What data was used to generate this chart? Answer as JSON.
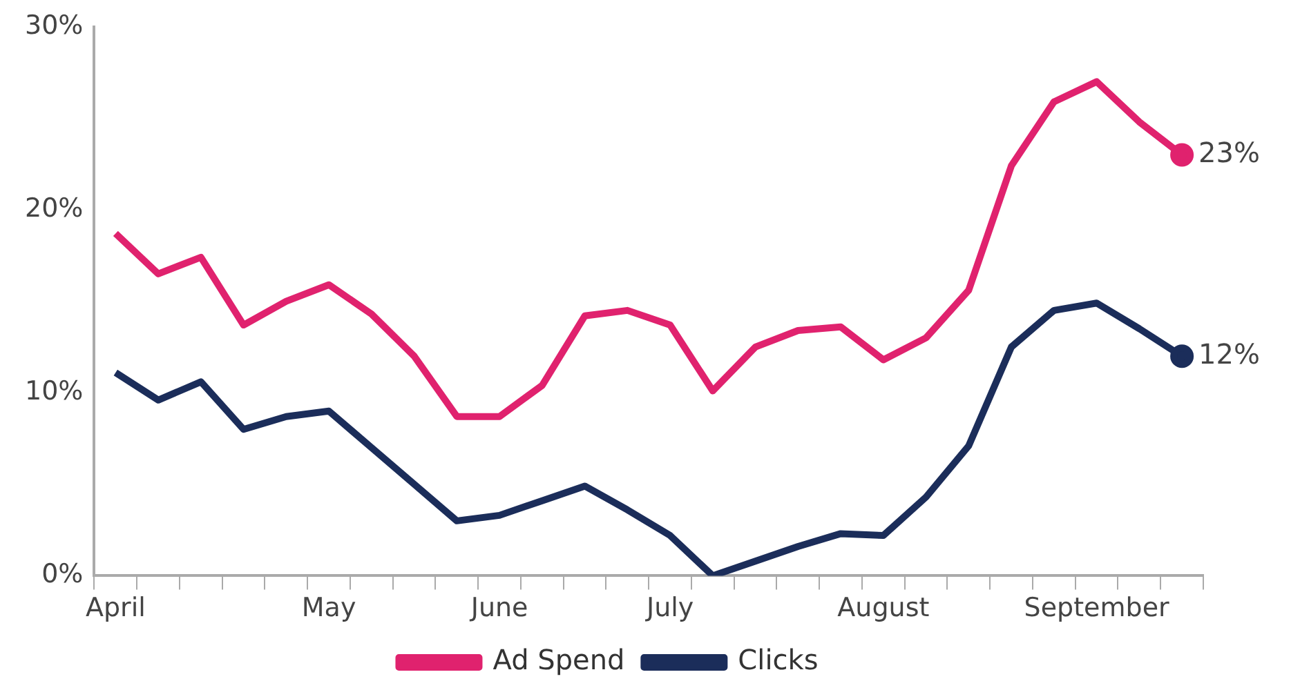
{
  "chart_data": {
    "type": "line",
    "categories": [
      "April",
      null,
      null,
      null,
      null,
      "May",
      null,
      null,
      null,
      "June",
      null,
      null,
      null,
      "July",
      null,
      null,
      null,
      null,
      "August",
      null,
      null,
      null,
      null,
      "September",
      null,
      null
    ],
    "series": [
      {
        "name": "Ad Spend",
        "color": "#e0226e",
        "values": [
          18.7,
          16.5,
          17.4,
          13.7,
          15.0,
          15.9,
          14.3,
          12.0,
          8.7,
          8.7,
          10.4,
          14.2,
          14.5,
          13.7,
          10.1,
          12.5,
          13.4,
          13.6,
          11.8,
          13.0,
          15.6,
          22.4,
          25.9,
          27.0,
          24.8,
          23
        ],
        "value_labels": [
          null,
          null,
          null,
          null,
          null,
          null,
          null,
          null,
          null,
          null,
          null,
          null,
          null,
          null,
          null,
          null,
          null,
          null,
          null,
          null,
          null,
          null,
          null,
          null,
          null,
          "23%"
        ]
      },
      {
        "name": "Clicks",
        "color": "#1b2d5a",
        "values": [
          11.1,
          9.6,
          10.6,
          8.0,
          8.7,
          9.0,
          7.0,
          5.0,
          3.0,
          3.3,
          4.1,
          4.9,
          3.6,
          2.2,
          0,
          0.8,
          1.6,
          2.3,
          2.2,
          4.3,
          7.1,
          12.5,
          14.5,
          14.9,
          13.5,
          12
        ],
        "value_labels": [
          null,
          null,
          null,
          null,
          null,
          null,
          null,
          null,
          null,
          null,
          null,
          null,
          null,
          null,
          null,
          null,
          null,
          null,
          null,
          null,
          null,
          null,
          null,
          null,
          null,
          "12%"
        ]
      }
    ],
    "ylim": [
      0,
      30
    ],
    "yticks": [
      {
        "value": 0,
        "label": "0%"
      },
      {
        "value": 10,
        "label": "10%"
      },
      {
        "value": 20,
        "label": "20%"
      },
      {
        "value": 30,
        "label": "30%"
      }
    ],
    "grid": false,
    "legend": "bottom",
    "line_style": "solid"
  }
}
